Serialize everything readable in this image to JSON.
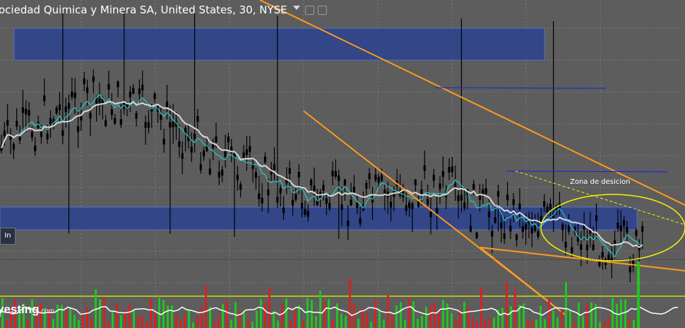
{
  "header": {
    "title": "ociedad Quimica y Minera SA, United States, 30, NYSE"
  },
  "controls": {
    "in_label": "In"
  },
  "watermark": {
    "text": "vesting",
    "suffix": ".com"
  },
  "annotations": {
    "decision_zone": "Zona de desicion"
  },
  "colors": {
    "background": "#5d5d5d",
    "gridline": "#7a7a7a",
    "candle": "#000000",
    "zone_fill": "#2a428f",
    "zone_border": "#5570c8",
    "trendline": "#ff9a1f",
    "resistance_line": "#1d2bd0",
    "ellipse": "#f2f20a",
    "dashed_projection": "#f2f20a",
    "volume_baseline": "#c8e000",
    "ma_fast": "#28c8c8",
    "ma_slow": "#d8d8d8",
    "volume_up": "#22c322",
    "volume_down": "#d62222",
    "volume_avg": "#ffffff"
  },
  "icons": [
    "chevron-down-icon",
    "window-icon",
    "settings-icon"
  ],
  "chart_data": {
    "type": "candlestick",
    "bar_count": 90,
    "price_seed": 60,
    "trend_style": "descending channel with range",
    "volume_present": true,
    "legend": "none"
  }
}
